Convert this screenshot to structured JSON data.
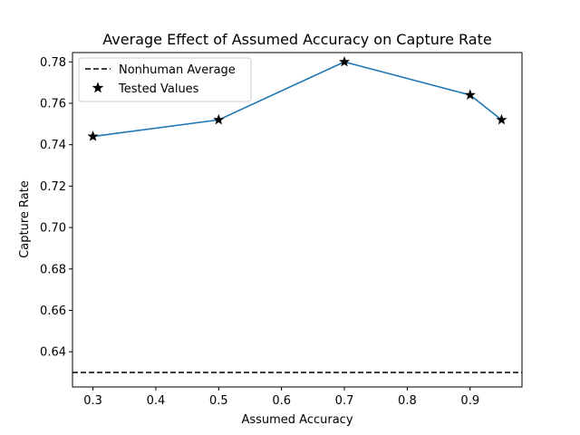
{
  "chart_data": {
    "type": "line",
    "title": "Average Effect of Assumed Accuracy on Capture Rate",
    "xlabel": "Assumed Accuracy",
    "ylabel": "Capture Rate",
    "xlim": [
      0.2675,
      0.9825
    ],
    "ylim": [
      0.623,
      0.7845
    ],
    "xticks": [
      0.3,
      0.4,
      0.5,
      0.6,
      0.7,
      0.8,
      0.9
    ],
    "xtick_labels": [
      "0.3",
      "0.4",
      "0.5",
      "0.6",
      "0.7",
      "0.8",
      "0.9"
    ],
    "yticks": [
      0.64,
      0.66,
      0.68,
      0.7,
      0.72,
      0.74,
      0.76,
      0.78
    ],
    "ytick_labels": [
      "0.64",
      "0.66",
      "0.68",
      "0.70",
      "0.72",
      "0.74",
      "0.76",
      "0.78"
    ],
    "grid": false,
    "legend_position": "top-left",
    "series": [
      {
        "name": "Tested Values",
        "kind": "line-with-star-markers",
        "color": "#1f77b4",
        "marker_color": "#000000",
        "x": [
          0.3,
          0.5,
          0.7,
          0.9,
          0.95
        ],
        "y": [
          0.744,
          0.752,
          0.78,
          0.764,
          0.752
        ]
      },
      {
        "name": "Nonhuman Average",
        "kind": "horizontal-dashed-line",
        "color": "#000000",
        "y": 0.63
      }
    ],
    "legend": [
      {
        "label": "Nonhuman Average",
        "style": "dashed-line"
      },
      {
        "label": "Tested Values",
        "style": "star-marker"
      }
    ]
  }
}
